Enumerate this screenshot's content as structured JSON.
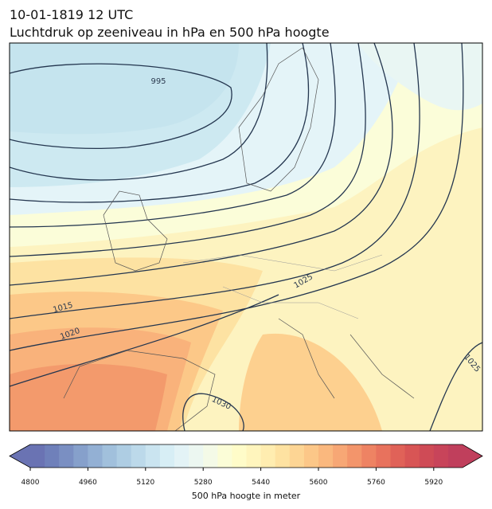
{
  "header": {
    "date": "10-01-1819 12 UTC",
    "title": "Luchtdruk op zeeniveau in hPa en 500 hPa hoogte"
  },
  "map": {
    "contour_labels": [
      "995",
      "1015",
      "1020",
      "1025",
      "1030",
      "1025"
    ]
  },
  "colorbar": {
    "range": [
      4800,
      6000
    ],
    "ticks": [
      4800,
      4960,
      5120,
      5280,
      5440,
      5600,
      5760,
      5920
    ],
    "label": "500 hPa hoogte in meter",
    "colors": [
      "#6a73b3",
      "#6f80ba",
      "#7a8fc2",
      "#86a0cb",
      "#93b0d4",
      "#a1c0dc",
      "#aecde3",
      "#bcd9ea",
      "#cae4f0",
      "#d7eef5",
      "#e3f3f6",
      "#ecf7f1",
      "#f4fae7",
      "#fbfdd7",
      "#fffcc9",
      "#fff5bd",
      "#ffedb0",
      "#fee2a1",
      "#fdd594",
      "#fcc788",
      "#fab87e",
      "#f7a775",
      "#f3956b",
      "#ee8363",
      "#e8725d",
      "#e06258",
      "#d85555",
      "#cf4b56",
      "#c8445a",
      "#c03f5c"
    ]
  }
}
